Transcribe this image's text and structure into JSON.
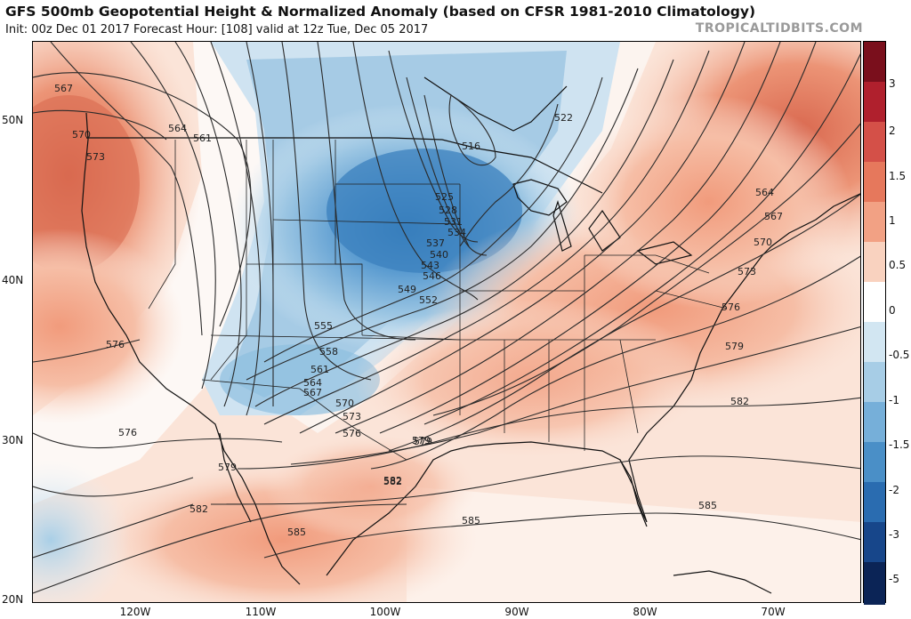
{
  "header": {
    "title": "GFS 500mb Geopotential Height & Normalized Anomaly (based on CFSR 1981-2010 Climatology)",
    "subtitle": "Init: 00z Dec 01 2017   Forecast Hour: [108]   valid at 12z Tue, Dec 05 2017",
    "watermark": "TROPICALTIDBITS.COM"
  },
  "axes": {
    "lat_labels": [
      "50N",
      "40N",
      "30N",
      "20N"
    ],
    "lon_labels": [
      "120W",
      "110W",
      "100W",
      "90W",
      "80W",
      "70W"
    ]
  },
  "colorbar": {
    "labels": [
      "3",
      "2",
      "1.5",
      "1",
      "0.5",
      "0",
      "-0.5",
      "-1",
      "-1.5",
      "-2",
      "-3",
      "-5"
    ],
    "colors": [
      "#7a0f1c",
      "#b0202d",
      "#d45048",
      "#e6785c",
      "#f2a184",
      "#f9d2bf",
      "#ffffff",
      "#d2e6f2",
      "#a7cde6",
      "#76afd9",
      "#4a8fc7",
      "#2a6cb0",
      "#17468a",
      "#0b2456"
    ]
  },
  "contours": {
    "labels": [
      "567",
      "570",
      "573",
      "564",
      "561",
      "516",
      "522",
      "525",
      "528",
      "531",
      "534",
      "537",
      "540",
      "543",
      "546",
      "549",
      "552",
      "555",
      "558",
      "561",
      "564",
      "567",
      "570",
      "573",
      "576",
      "579",
      "582",
      "585",
      "564",
      "567",
      "570",
      "573",
      "576",
      "579",
      "582",
      "585",
      "576",
      "576",
      "579",
      "582",
      "585",
      "582",
      "579"
    ]
  }
}
